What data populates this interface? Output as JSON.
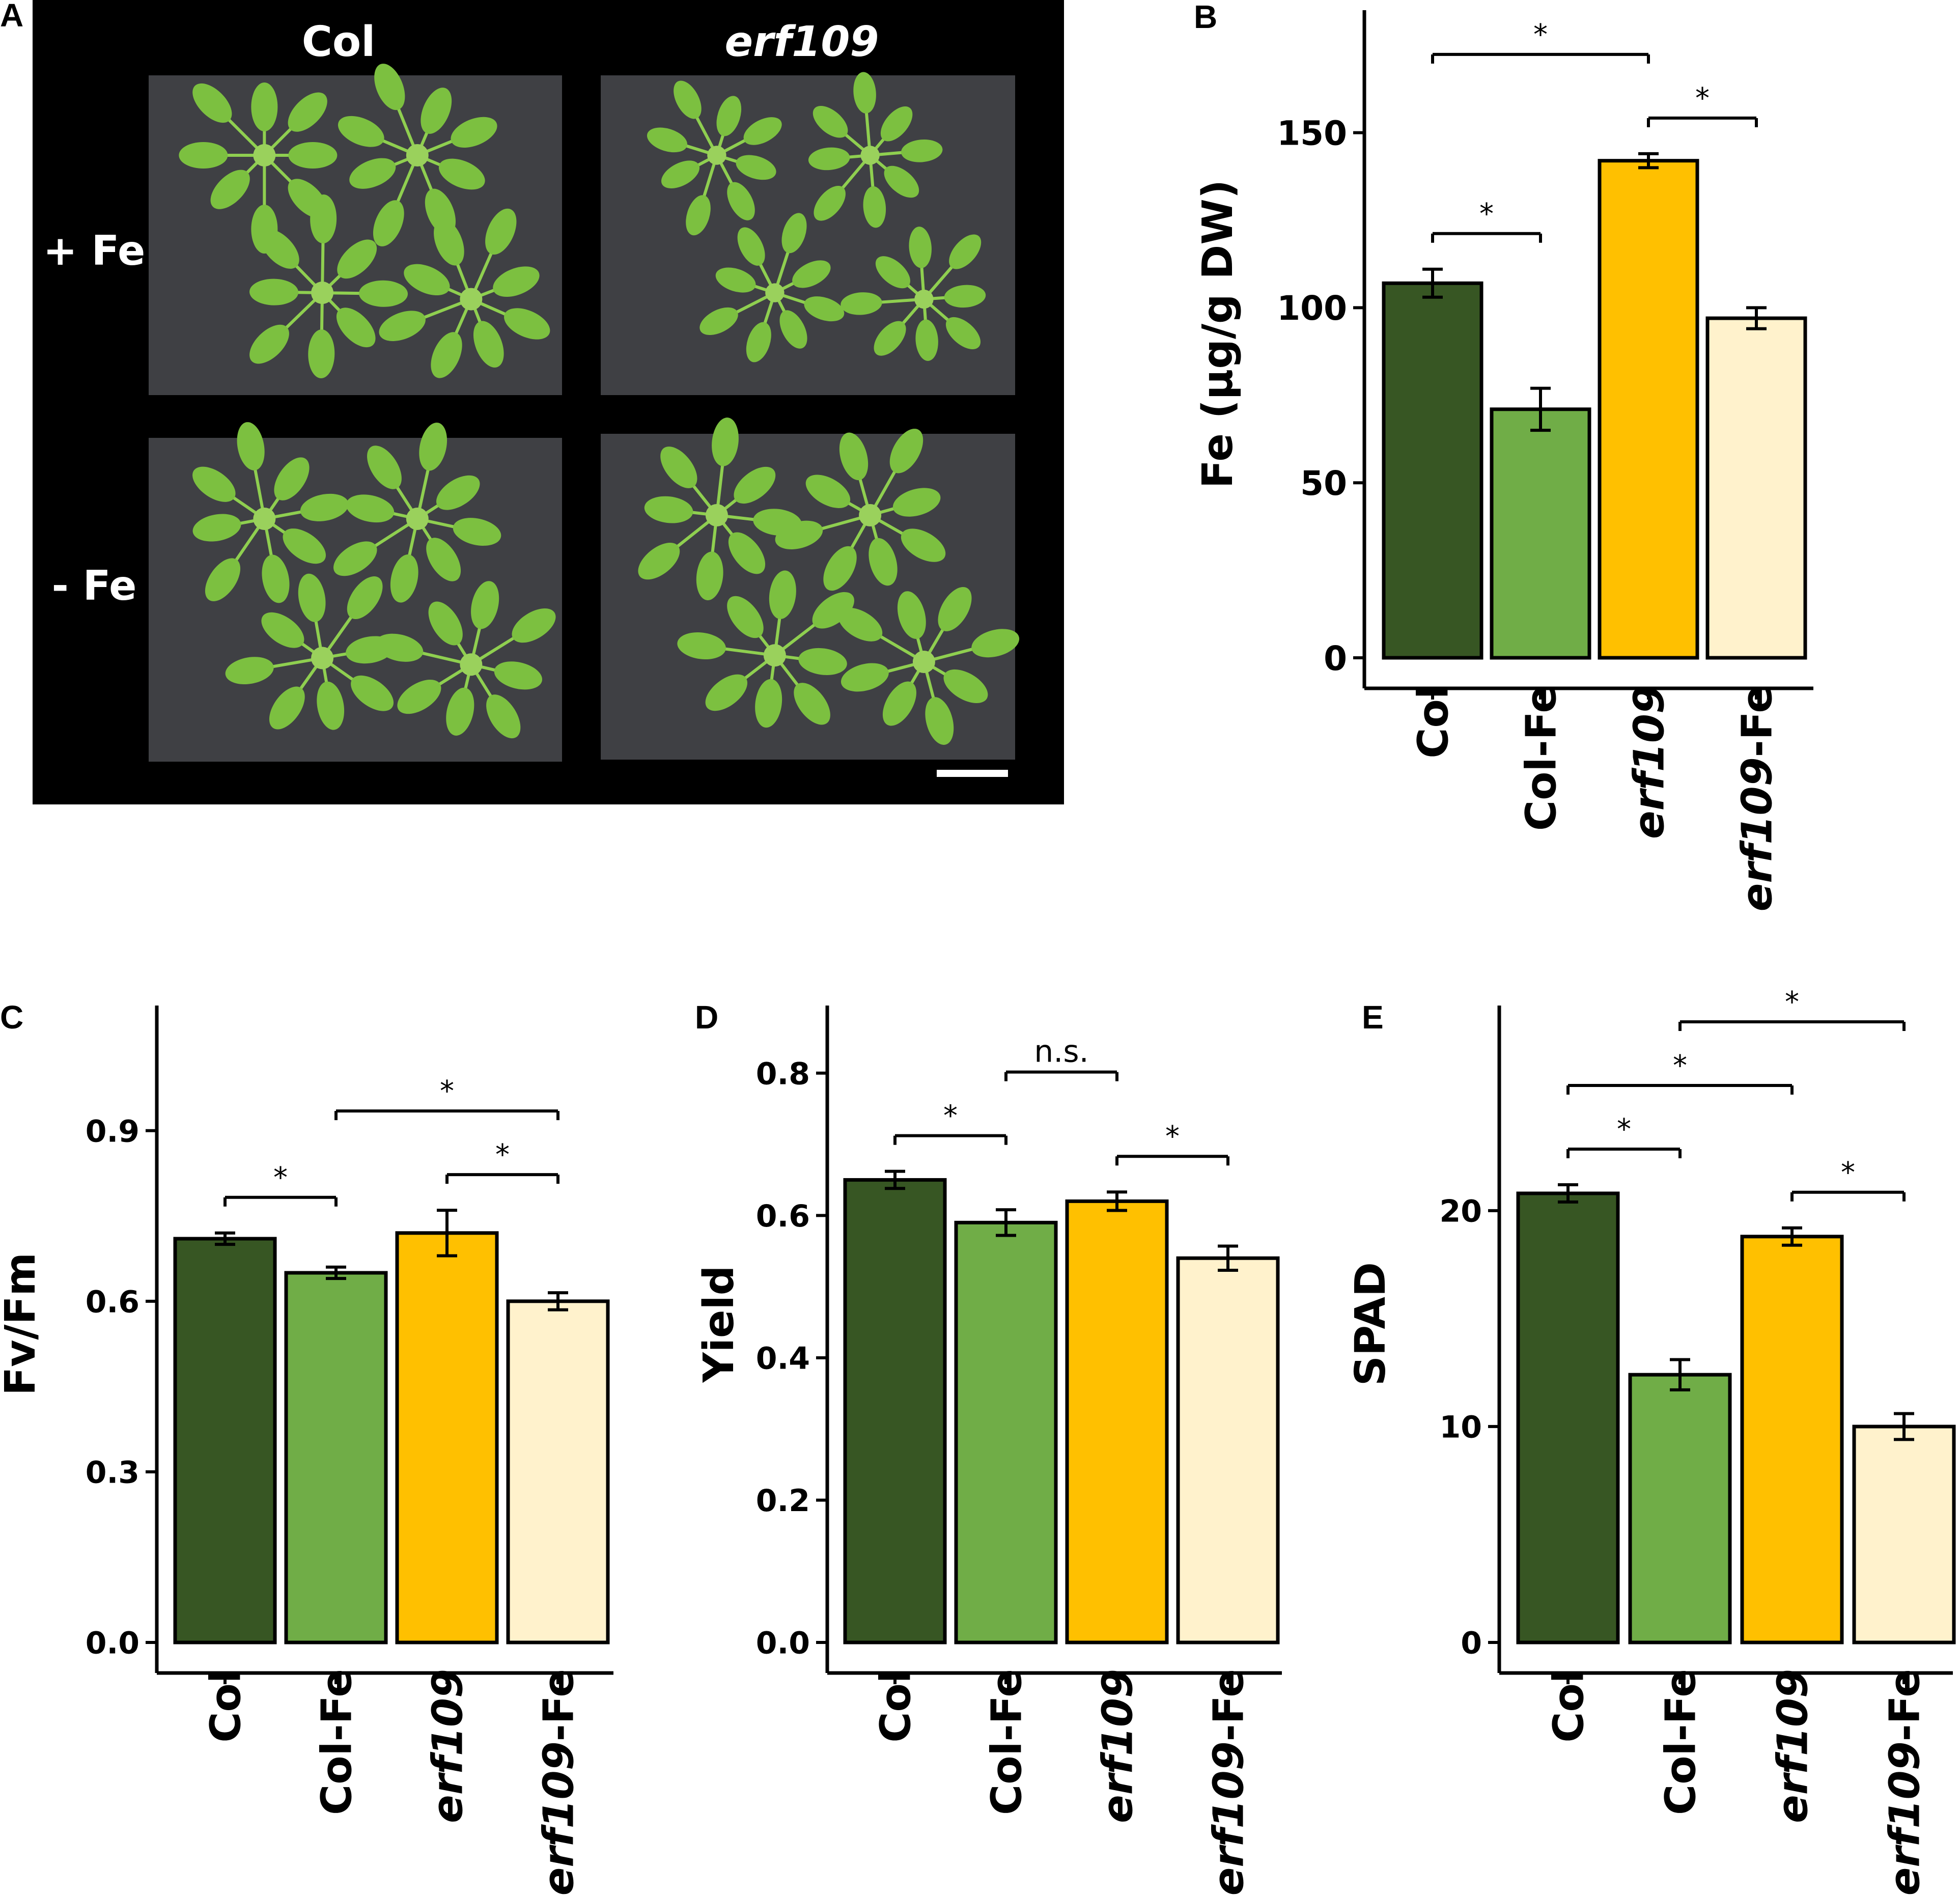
{
  "photo_panel": {
    "letter": "A",
    "column_labels": [
      "Col",
      "erf109"
    ],
    "row_labels": [
      "+ Fe",
      "- Fe"
    ],
    "has_scale_bar": true
  },
  "colors": {
    "Col": "#375623",
    "Col-Fe": "#70AD47",
    "erf109": "#FFC000",
    "erf109-Fe": "#FFF2CC",
    "photo_background": "#000000",
    "tray": "#3f4044",
    "leaf": "#7cc040"
  },
  "chart_data": [
    {
      "panel": "B",
      "type": "bar",
      "categories": [
        "Col",
        "Col-Fe",
        "erf109",
        "erf109-Fe"
      ],
      "italic_prefix": [
        "",
        "",
        "erf109",
        "erf109"
      ],
      "values": [
        107,
        71,
        142,
        97
      ],
      "errors": [
        4,
        6,
        2,
        3
      ],
      "ylabel": "Fe (µg/g DW)",
      "ylim": [
        0,
        185
      ],
      "yticks": [
        0,
        50,
        100,
        150
      ],
      "significance": [
        {
          "from": 0,
          "to": 1,
          "label": "*"
        },
        {
          "from": 2,
          "to": 3,
          "label": "*"
        },
        {
          "from": 0,
          "to": 2,
          "label": "*"
        },
        {
          "from": 1,
          "to": 3,
          "label": "*"
        }
      ]
    },
    {
      "panel": "C",
      "type": "bar",
      "categories": [
        "Col",
        "Col-Fe",
        "erf109",
        "erf109-Fe"
      ],
      "italic_prefix": [
        "",
        "",
        "erf109",
        "erf109"
      ],
      "values": [
        0.71,
        0.65,
        0.72,
        0.6
      ],
      "errors": [
        0.01,
        0.01,
        0.04,
        0.015
      ],
      "ylabel": "Fv/Fm",
      "ylim": [
        0,
        1.12
      ],
      "yticks": [
        "0.0",
        "0.3",
        "0.6",
        "0.9"
      ],
      "significance": [
        {
          "from": 0,
          "to": 1,
          "label": "*"
        },
        {
          "from": 2,
          "to": 3,
          "label": "*"
        },
        {
          "from": 1,
          "to": 3,
          "label": "*"
        }
      ]
    },
    {
      "panel": "D",
      "type": "bar",
      "categories": [
        "Col",
        "Col-Fe",
        "erf109",
        "erf109-Fe"
      ],
      "italic_prefix": [
        "",
        "",
        "erf109",
        "erf109"
      ],
      "values": [
        0.65,
        0.59,
        0.62,
        0.54
      ],
      "errors": [
        0.012,
        0.018,
        0.013,
        0.017
      ],
      "ylabel": "Yield",
      "ylim": [
        0,
        0.895
      ],
      "yticks": [
        "0.0",
        "0.2",
        "0.4",
        "0.6",
        "0.8"
      ],
      "significance": [
        {
          "from": 0,
          "to": 1,
          "label": "*"
        },
        {
          "from": 2,
          "to": 3,
          "label": "*"
        },
        {
          "from": 1,
          "to": 2,
          "label": "n.s."
        }
      ]
    },
    {
      "panel": "E",
      "type": "bar",
      "categories": [
        "Col",
        "Col-Fe",
        "erf109",
        "erf109-Fe"
      ],
      "italic_prefix": [
        "",
        "",
        "erf109",
        "erf109"
      ],
      "values": [
        20.8,
        12.4,
        18.8,
        10
      ],
      "errors": [
        0.4,
        0.7,
        0.4,
        0.6
      ],
      "ylabel": "SPAD",
      "ylim": [
        0,
        29.5
      ],
      "yticks": [
        0,
        10,
        20
      ],
      "significance": [
        {
          "from": 0,
          "to": 1,
          "label": "*"
        },
        {
          "from": 2,
          "to": 3,
          "label": "*"
        },
        {
          "from": 0,
          "to": 2,
          "label": "*"
        },
        {
          "from": 1,
          "to": 3,
          "label": "*"
        }
      ]
    }
  ]
}
